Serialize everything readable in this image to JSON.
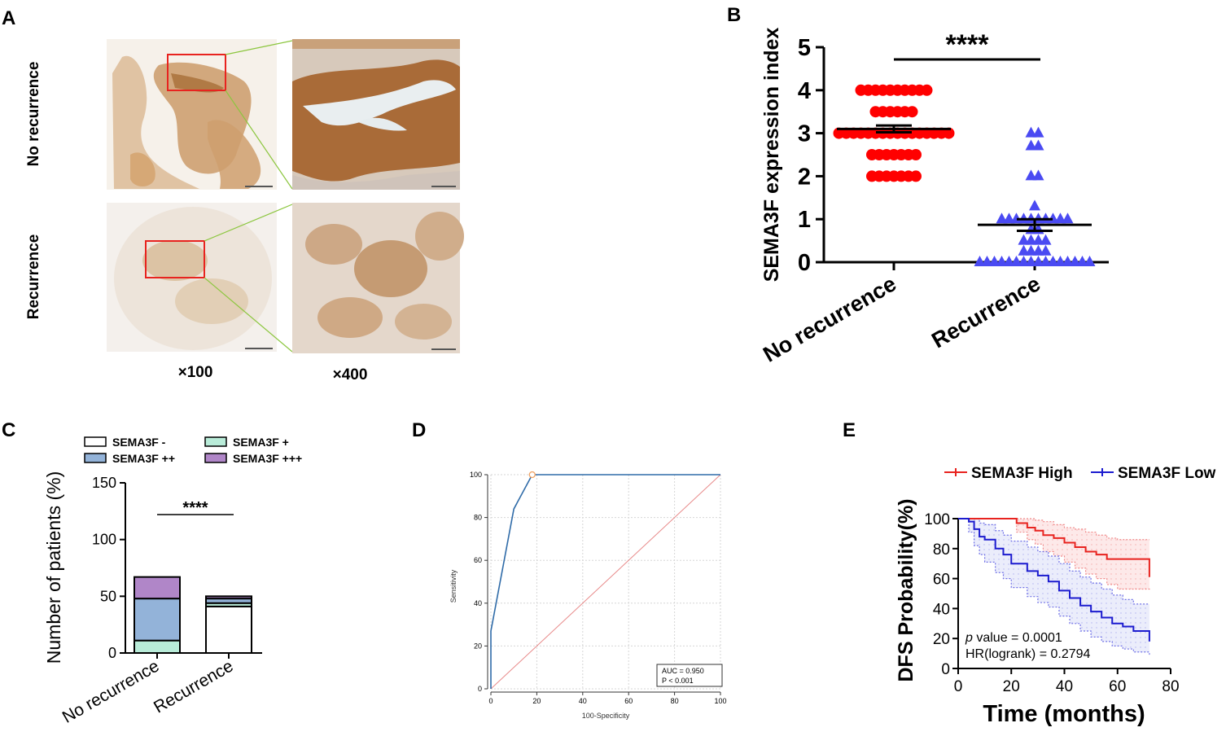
{
  "panels": {
    "A": {
      "label": "A",
      "row_labels": [
        "No recurrence",
        "Recurrence"
      ],
      "col_labels": [
        "×100",
        "×400"
      ],
      "colors": {
        "stain": "#c08a55",
        "tissue_bg": "#f3efe9",
        "roi": "#e8231f",
        "connector": "#8cc63f"
      }
    },
    "B": {
      "label": "B",
      "significance": "****"
    },
    "C": {
      "label": "C",
      "significance": "****"
    },
    "D": {
      "label": "D",
      "auc_text": "AUC = 0.950",
      "p_text": "P < 0.001"
    },
    "E": {
      "label": "E",
      "p_label": "p",
      "p_text": " value = 0.0001",
      "hr_text": "HR(logrank) = 0.2794"
    }
  },
  "chart_data": [
    {
      "panel": "B",
      "type": "scatter",
      "ylabel": "SEMA3F expression index",
      "categories": [
        "No recurrence",
        "Recurrence"
      ],
      "ylim": [
        0,
        5
      ],
      "yticks": [
        0,
        1,
        2,
        3,
        4,
        5
      ],
      "series": [
        {
          "category": "No recurrence",
          "marker": "circle",
          "color": "#ff0000",
          "levels": [
            {
              "y": 4,
              "n": 10
            },
            {
              "y": 3.5,
              "n": 6
            },
            {
              "y": 3,
              "n": 16
            },
            {
              "y": 2.5,
              "n": 7
            },
            {
              "y": 2,
              "n": 7
            }
          ],
          "mean": 3.1,
          "sem_low": 3.02,
          "sem_high": 3.18
        },
        {
          "category": "Recurrence",
          "marker": "triangle",
          "color": "#4a4af2",
          "levels": [
            {
              "y": 3,
              "n": 2
            },
            {
              "y": 2.7,
              "n": 2
            },
            {
              "y": 2,
              "n": 2
            },
            {
              "y": 1.3,
              "n": 1
            },
            {
              "y": 1,
              "n": 10
            },
            {
              "y": 0.75,
              "n": 2
            },
            {
              "y": 0.5,
              "n": 4
            },
            {
              "y": 0.25,
              "n": 4
            },
            {
              "y": 0,
              "n": 16
            }
          ],
          "mean": 0.87,
          "sem_low": 0.73,
          "sem_high": 1.0
        }
      ]
    },
    {
      "panel": "C",
      "type": "bar",
      "stacked": true,
      "ylabel": "Number of patients (%)",
      "categories": [
        "No recurrence",
        "Recurrence"
      ],
      "ylim": [
        0,
        150
      ],
      "yticks": [
        0,
        50,
        100,
        150
      ],
      "legend": [
        "SEMA3F -",
        "SEMA3F +",
        "SEMA3F ++",
        "SEMA3F +++"
      ],
      "series": [
        {
          "name": "SEMA3F -",
          "color": "#ffffff",
          "values": [
            0,
            41
          ]
        },
        {
          "name": "SEMA3F +",
          "color": "#b9ecd9",
          "values": [
            11,
            3
          ]
        },
        {
          "name": "SEMA3F ++",
          "color": "#93b3d9",
          "values": [
            37,
            4
          ]
        },
        {
          "name": "SEMA3F +++",
          "color": "#b086c8",
          "values": [
            19,
            2
          ]
        }
      ]
    },
    {
      "panel": "D",
      "type": "line",
      "xlabel": "100-Specificity",
      "ylabel": "Sensitivity",
      "xlim": [
        0,
        100
      ],
      "ylim": [
        0,
        100
      ],
      "xticks": [
        0,
        20,
        40,
        60,
        80,
        100
      ],
      "yticks": [
        0,
        20,
        40,
        60,
        80,
        100
      ],
      "grid": true,
      "series": [
        {
          "name": "ROC",
          "color": "#2f6ba8",
          "x": [
            0,
            0,
            10,
            18,
            100
          ],
          "y": [
            0,
            27,
            84,
            100,
            100
          ]
        },
        {
          "name": "reference",
          "color": "#e88a8a",
          "x": [
            0,
            100
          ],
          "y": [
            0,
            100
          ]
        }
      ],
      "marker_point": [
        18,
        100
      ]
    },
    {
      "panel": "E",
      "type": "line",
      "xlabel": "Time (months)",
      "ylabel": "DFS Probability(%)",
      "xlim": [
        0,
        80
      ],
      "ylim": [
        0,
        100
      ],
      "xticks": [
        0,
        20,
        40,
        60,
        80
      ],
      "yticks": [
        0,
        20,
        40,
        60,
        80,
        100
      ],
      "legend": [
        "SEMA3F High",
        "SEMA3F Low"
      ],
      "series": [
        {
          "name": "SEMA3F High",
          "color": "#e8231f",
          "x": [
            0,
            13,
            22,
            26,
            29,
            32,
            36,
            40,
            44,
            48,
            52,
            56,
            60,
            72,
            72
          ],
          "y": [
            100,
            100,
            97,
            94,
            92,
            89,
            87,
            84,
            81,
            78,
            76,
            73,
            73,
            73,
            61
          ],
          "ci_upper": [
            100,
            100,
            100,
            100,
            99,
            98,
            96,
            94,
            93,
            91,
            89,
            87,
            86,
            86,
            86
          ],
          "ci_lower": [
            100,
            100,
            91,
            86,
            83,
            78,
            75,
            71,
            67,
            63,
            60,
            56,
            53,
            53,
            52
          ]
        },
        {
          "name": "SEMA3F Low",
          "color": "#1c1ccf",
          "x": [
            0,
            4,
            6,
            8,
            10,
            14,
            17,
            20,
            26,
            30,
            34,
            38,
            42,
            46,
            50,
            54,
            58,
            62,
            66,
            72,
            72
          ],
          "y": [
            100,
            98,
            93,
            88,
            86,
            80,
            76,
            70,
            65,
            62,
            58,
            52,
            47,
            42,
            38,
            34,
            30,
            28,
            25,
            25,
            18
          ],
          "ci_upper": [
            100,
            100,
            100,
            97,
            96,
            92,
            89,
            85,
            81,
            78,
            75,
            70,
            65,
            61,
            57,
            53,
            49,
            46,
            43,
            43,
            43
          ],
          "ci_lower": [
            100,
            91,
            82,
            76,
            71,
            64,
            60,
            54,
            48,
            44,
            41,
            35,
            30,
            25,
            21,
            18,
            15,
            13,
            11,
            10,
            9
          ]
        }
      ]
    }
  ]
}
